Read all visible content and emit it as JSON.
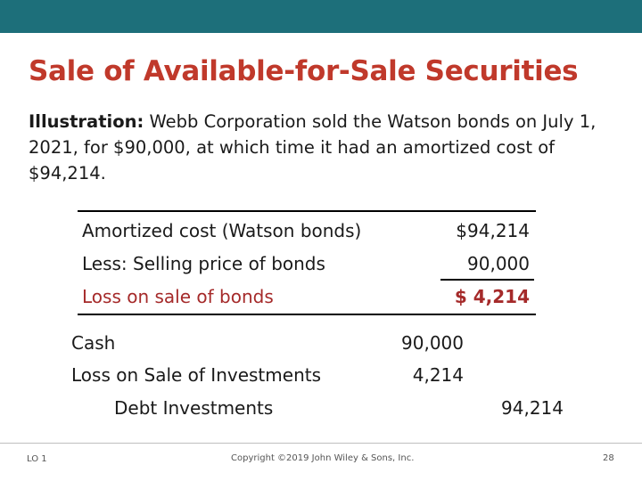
{
  "slide": {
    "title": "Sale of Available-for-Sale Securities",
    "illustration_label": "Illustration:",
    "illustration_text": " Webb Corporation sold the Watson bonds on July 1, 2021, for $90,000, at which time it had an amortized cost of $94,214."
  },
  "calculation": {
    "rows": [
      {
        "label": "Amortized cost (Watson bonds)",
        "value": "$94,214"
      },
      {
        "label": "Less: Selling price of bonds",
        "value": "90,000"
      },
      {
        "label": "Loss on sale of bonds",
        "value": "$ 4,214"
      }
    ]
  },
  "journal_entry": {
    "lines": [
      {
        "account": "Cash",
        "debit": "90,000",
        "credit": ""
      },
      {
        "account": "Loss on Sale of Investments",
        "debit": "4,214",
        "credit": ""
      },
      {
        "account": "Debt Investments",
        "debit": "",
        "credit": "94,214"
      }
    ]
  },
  "footer": {
    "lo": "LO 1",
    "copyright": "Copyright ©2019 John Wiley & Sons, Inc.",
    "page": "28"
  },
  "colors": {
    "header_bar": "#1d6f7a",
    "title": "#c0392b",
    "loss_text": "#a52a2a"
  }
}
